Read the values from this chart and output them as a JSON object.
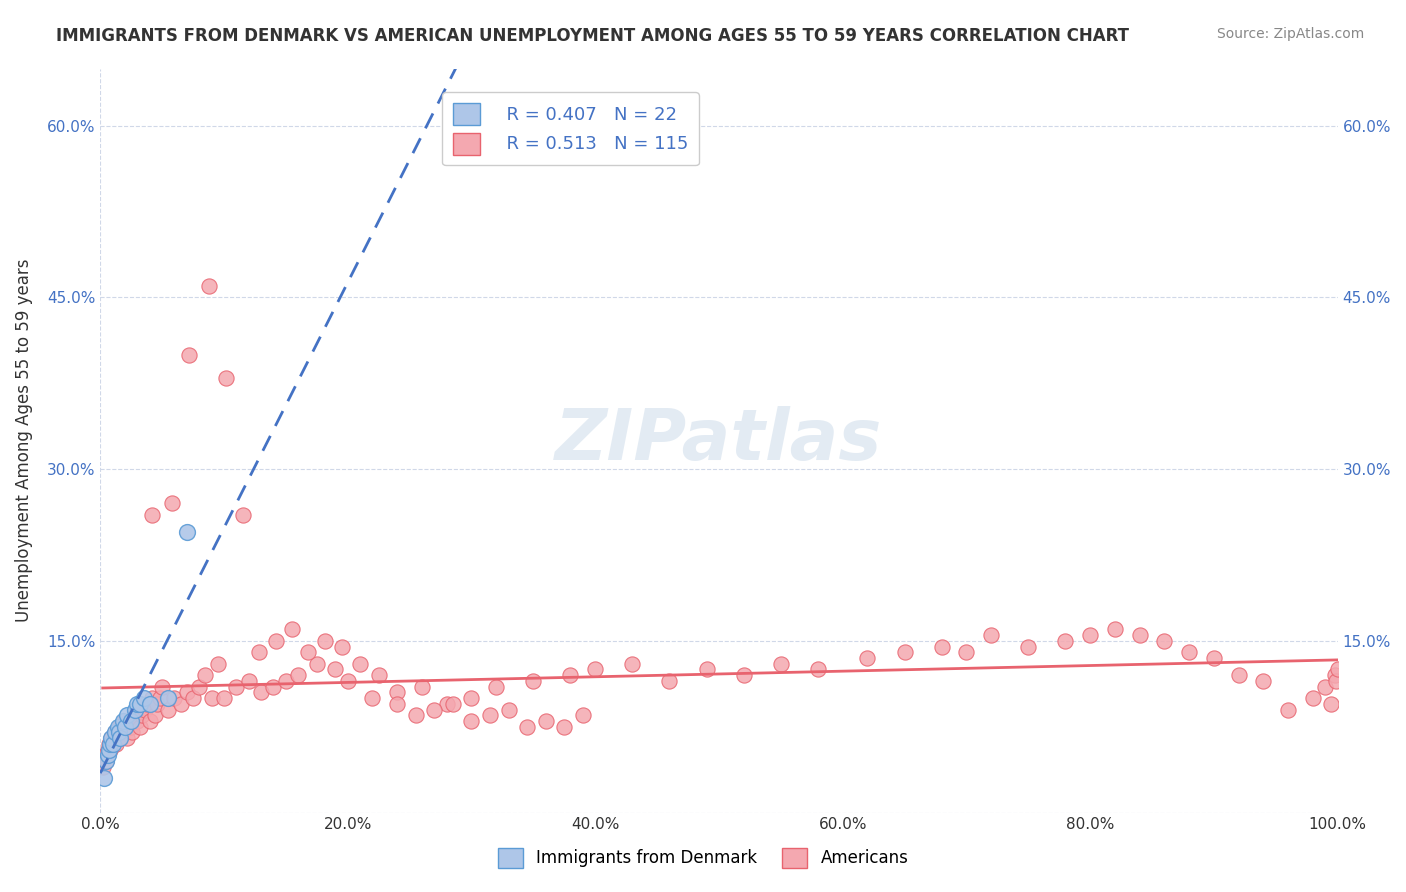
{
  "title": "IMMIGRANTS FROM DENMARK VS AMERICAN UNEMPLOYMENT AMONG AGES 55 TO 59 YEARS CORRELATION CHART",
  "source": "Source: ZipAtlas.com",
  "xlabel": "",
  "ylabel": "Unemployment Among Ages 55 to 59 years",
  "xlim": [
    0,
    1.0
  ],
  "ylim": [
    0,
    0.65
  ],
  "xticks": [
    0.0,
    0.2,
    0.4,
    0.6,
    0.8,
    1.0
  ],
  "xticklabels": [
    "0.0%",
    "20.0%",
    "40.0%",
    "60.0%",
    "80.0%",
    "100.0%"
  ],
  "yticks": [
    0.0,
    0.15,
    0.3,
    0.45,
    0.6
  ],
  "yticklabels": [
    "",
    "15.0%",
    "30.0%",
    "45.0%",
    "60.0%"
  ],
  "watermark": "ZIPatlas",
  "legend_r1": "R = 0.407",
  "legend_n1": "N = 22",
  "legend_r2": "R = 0.513",
  "legend_n2": "N = 115",
  "denmark_color": "#aec6e8",
  "americans_color": "#f4a8b0",
  "denmark_edge": "#5b9bd5",
  "americans_edge": "#e8636e",
  "trendline_denmark_color": "#4472c4",
  "trendline_americans_color": "#e8636e",
  "background_color": "#ffffff",
  "grid_color": "#d0d8e8",
  "denmark_scatter_x": [
    0.003,
    0.005,
    0.006,
    0.007,
    0.008,
    0.009,
    0.01,
    0.012,
    0.014,
    0.015,
    0.016,
    0.018,
    0.02,
    0.022,
    0.025,
    0.028,
    0.03,
    0.032,
    0.035,
    0.04,
    0.055,
    0.07
  ],
  "denmark_scatter_y": [
    0.03,
    0.045,
    0.05,
    0.055,
    0.06,
    0.065,
    0.06,
    0.07,
    0.075,
    0.07,
    0.065,
    0.08,
    0.075,
    0.085,
    0.08,
    0.09,
    0.095,
    0.095,
    0.1,
    0.095,
    0.1,
    0.245
  ],
  "americans_scatter_x": [
    0.002,
    0.004,
    0.005,
    0.006,
    0.007,
    0.008,
    0.009,
    0.01,
    0.011,
    0.012,
    0.013,
    0.014,
    0.015,
    0.016,
    0.017,
    0.018,
    0.019,
    0.02,
    0.022,
    0.024,
    0.025,
    0.026,
    0.028,
    0.03,
    0.032,
    0.034,
    0.036,
    0.038,
    0.04,
    0.042,
    0.044,
    0.046,
    0.048,
    0.05,
    0.055,
    0.06,
    0.065,
    0.07,
    0.075,
    0.08,
    0.085,
    0.09,
    0.095,
    0.1,
    0.11,
    0.12,
    0.13,
    0.14,
    0.15,
    0.16,
    0.175,
    0.19,
    0.2,
    0.22,
    0.24,
    0.26,
    0.28,
    0.3,
    0.32,
    0.35,
    0.38,
    0.4,
    0.43,
    0.46,
    0.49,
    0.52,
    0.55,
    0.58,
    0.62,
    0.65,
    0.68,
    0.7,
    0.72,
    0.75,
    0.78,
    0.8,
    0.82,
    0.84,
    0.86,
    0.88,
    0.9,
    0.92,
    0.94,
    0.96,
    0.98,
    0.99,
    0.995,
    0.998,
    0.999,
    1.0,
    0.042,
    0.058,
    0.072,
    0.088,
    0.102,
    0.115,
    0.128,
    0.142,
    0.155,
    0.168,
    0.182,
    0.195,
    0.21,
    0.225,
    0.24,
    0.255,
    0.27,
    0.285,
    0.3,
    0.315,
    0.33,
    0.345,
    0.36,
    0.375,
    0.39
  ],
  "americans_scatter_y": [
    0.04,
    0.05,
    0.045,
    0.055,
    0.06,
    0.055,
    0.065,
    0.06,
    0.065,
    0.07,
    0.06,
    0.065,
    0.075,
    0.065,
    0.075,
    0.07,
    0.08,
    0.075,
    0.065,
    0.08,
    0.075,
    0.07,
    0.085,
    0.08,
    0.075,
    0.085,
    0.09,
    0.095,
    0.08,
    0.1,
    0.085,
    0.095,
    0.1,
    0.11,
    0.09,
    0.1,
    0.095,
    0.105,
    0.1,
    0.11,
    0.12,
    0.1,
    0.13,
    0.1,
    0.11,
    0.115,
    0.105,
    0.11,
    0.115,
    0.12,
    0.13,
    0.125,
    0.115,
    0.1,
    0.105,
    0.11,
    0.095,
    0.1,
    0.11,
    0.115,
    0.12,
    0.125,
    0.13,
    0.115,
    0.125,
    0.12,
    0.13,
    0.125,
    0.135,
    0.14,
    0.145,
    0.14,
    0.155,
    0.145,
    0.15,
    0.155,
    0.16,
    0.155,
    0.15,
    0.14,
    0.135,
    0.12,
    0.115,
    0.09,
    0.1,
    0.11,
    0.095,
    0.12,
    0.115,
    0.125,
    0.26,
    0.27,
    0.4,
    0.46,
    0.38,
    0.26,
    0.14,
    0.15,
    0.16,
    0.14,
    0.15,
    0.145,
    0.13,
    0.12,
    0.095,
    0.085,
    0.09,
    0.095,
    0.08,
    0.085,
    0.09,
    0.075,
    0.08,
    0.075,
    0.085
  ]
}
